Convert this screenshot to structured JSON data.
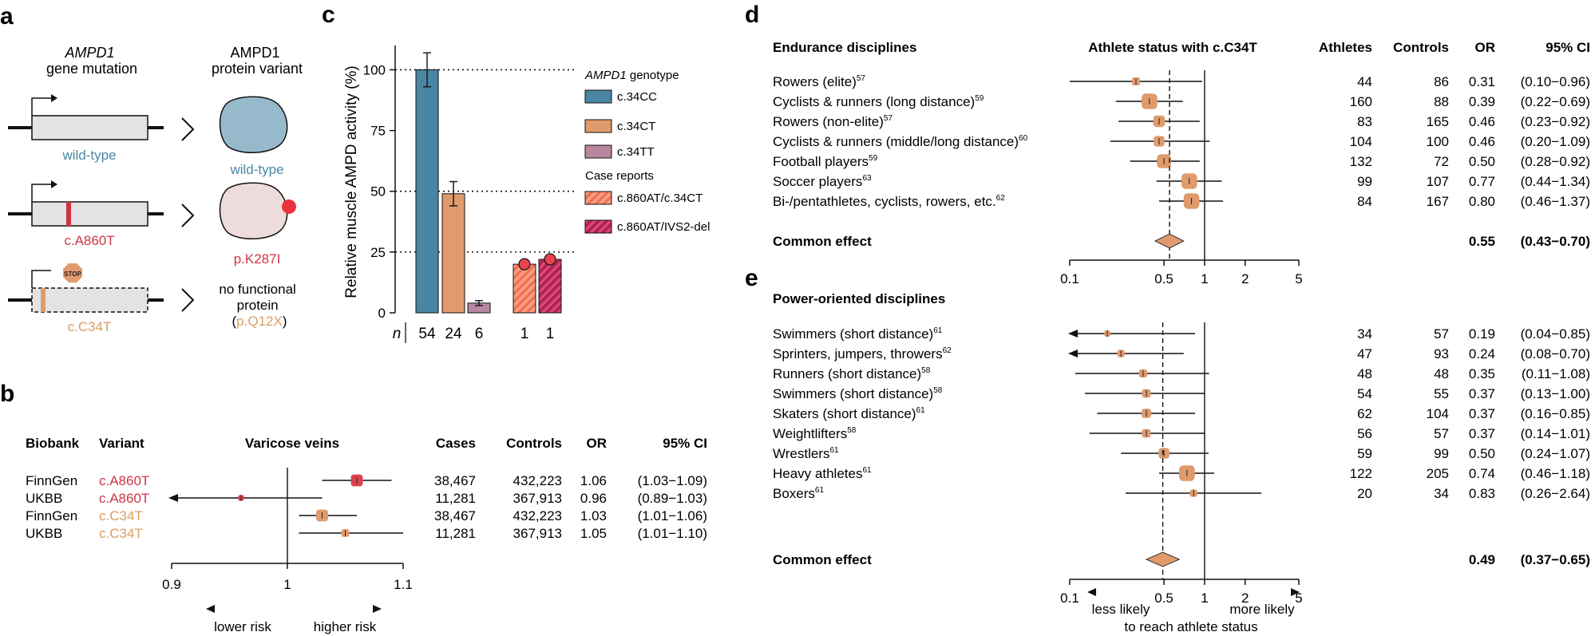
{
  "colors": {
    "blue": "#4a86a3",
    "blue_fill": "#97b9cc",
    "orange": "#e09a6c",
    "orange_text": "#d79e62",
    "mauve": "#b986a0",
    "red": "#cf3444",
    "pink_fill": "#eedcdd",
    "stripe_orange": "#f3745f",
    "stripe_pink": "#d6336f",
    "grey_fill": "#e3e3e3"
  },
  "panel_a": {
    "letter": "a",
    "col1_title_italic": "AMPD1",
    "col1_title_rest": "gene mutation",
    "col2_title_line1": "AMPD1",
    "col2_title_line2": "protein variant",
    "rows": [
      {
        "gene_label": "wild-type",
        "protein_label": "wild-type"
      },
      {
        "gene_label": "c.A860T",
        "protein_label": "p.K287I"
      },
      {
        "gene_label": "c.C34T",
        "protein_label_line1": "no functional",
        "protein_label_line2": "protein",
        "protein_label_paren_open": "(",
        "protein_label_paren_inner": "p.Q12X",
        "protein_label_paren_close": ")"
      }
    ],
    "stop_sign_text": "STOP"
  },
  "panel_b": {
    "letter": "b",
    "headers": {
      "biobank": "Biobank",
      "variant": "Variant",
      "plot": "Varicose veins",
      "cases": "Cases",
      "controls": "Controls",
      "or": "OR",
      "ci": "95% CI"
    },
    "rows": [
      {
        "biobank": "FinnGen",
        "variant": "c.A860T",
        "cases": "38,467",
        "controls": "432,223",
        "or": "1.06",
        "ci": "(1.03−1.09)"
      },
      {
        "biobank": "UKBB",
        "variant": "c.A860T",
        "cases": "11,281",
        "controls": "367,913",
        "or": "0.96",
        "ci": "(0.89−1.03)"
      },
      {
        "biobank": "FinnGen",
        "variant": "c.C34T",
        "cases": "38,467",
        "controls": "432,223",
        "or": "1.03",
        "ci": "(1.01−1.06)"
      },
      {
        "biobank": "UKBB",
        "variant": "c.C34T",
        "cases": "11,281",
        "controls": "367,913",
        "or": "1.05",
        "ci": "(1.01−1.10)"
      }
    ],
    "axis_ticks": [
      "0.9",
      "1",
      "1.1"
    ],
    "lower_label": "lower risk",
    "higher_label": "higher risk"
  },
  "panel_c": {
    "letter": "c",
    "ylabel": "Relative muscle AMPD activity (%)",
    "y_ticks": [
      "0",
      "25",
      "50",
      "75",
      "100"
    ],
    "n_label": "n",
    "n_values": [
      "54",
      "24",
      "6",
      "1",
      "1"
    ],
    "legend_title_italic": "AMPD1",
    "legend_title_rest": " genotype",
    "legend_items": [
      "c.34CC",
      "c.34CT",
      "c.34TT"
    ],
    "case_title": "Case reports",
    "case_items": [
      "c.860AT/c.34CT",
      "c.860AT/IVS2-del"
    ]
  },
  "panel_d": {
    "letter": "d",
    "group_title": "Endurance disciplines",
    "plot_title": "Athlete status with c.C34T",
    "headers": {
      "athletes": "Athletes",
      "controls": "Controls",
      "or": "OR",
      "ci": "95% CI"
    },
    "rows": [
      {
        "label": "Rowers (elite)",
        "ref": "57",
        "athletes": "44",
        "controls": "86",
        "or": "0.31",
        "ci": "(0.10−0.96)"
      },
      {
        "label": "Cyclists & runners (long distance)",
        "ref": "59",
        "athletes": "160",
        "controls": "88",
        "or": "0.39",
        "ci": "(0.22−0.69)"
      },
      {
        "label": "Rowers (non-elite)",
        "ref": "57",
        "athletes": "83",
        "controls": "165",
        "or": "0.46",
        "ci": "(0.23−0.92)"
      },
      {
        "label": "Cyclists & runners (middle/long distance)",
        "ref": "60",
        "athletes": "104",
        "controls": "100",
        "or": "0.46",
        "ci": "(0.20−1.09)"
      },
      {
        "label": "Football players",
        "ref": "59",
        "athletes": "132",
        "controls": "72",
        "or": "0.50",
        "ci": "(0.28−0.92)"
      },
      {
        "label": "Soccer players",
        "ref": "63",
        "athletes": "99",
        "controls": "107",
        "or": "0.77",
        "ci": "(0.44−1.34)"
      },
      {
        "label": "Bi-/pentathletes, cyclists, rowers, etc.",
        "ref": "62",
        "athletes": "84",
        "controls": "167",
        "or": "0.80",
        "ci": "(0.46−1.37)"
      }
    ],
    "common": {
      "label": "Common effect",
      "or": "0.55",
      "ci": "(0.43−0.70)"
    },
    "axis_ticks": [
      "0.1",
      "0.5",
      "1",
      "2",
      "5"
    ]
  },
  "panel_e": {
    "letter": "e",
    "group_title": "Power-oriented disciplines",
    "rows": [
      {
        "label": "Swimmers (short distance)",
        "ref": "61",
        "athletes": "34",
        "controls": "57",
        "or": "0.19",
        "ci": "(0.04−0.85)"
      },
      {
        "label": "Sprinters, jumpers, throwers",
        "ref": "62",
        "athletes": "47",
        "controls": "93",
        "or": "0.24",
        "ci": "(0.08−0.70)"
      },
      {
        "label": "Runners (short distance)",
        "ref": "58",
        "athletes": "48",
        "controls": "48",
        "or": "0.35",
        "ci": "(0.11−1.08)"
      },
      {
        "label": "Swimmers (short distance)",
        "ref": "58",
        "athletes": "54",
        "controls": "55",
        "or": "0.37",
        "ci": "(0.13−1.00)"
      },
      {
        "label": "Skaters (short distance)",
        "ref": "61",
        "athletes": "62",
        "controls": "104",
        "or": "0.37",
        "ci": "(0.16−0.85)"
      },
      {
        "label": "Weightlifters",
        "ref": "58",
        "athletes": "56",
        "controls": "57",
        "or": "0.37",
        "ci": "(0.14−1.01)"
      },
      {
        "label": "Wrestlers",
        "ref": "61",
        "athletes": "59",
        "controls": "99",
        "or": "0.50",
        "ci": "(0.24−1.07)"
      },
      {
        "label": "Heavy athletes",
        "ref": "61",
        "athletes": "122",
        "controls": "205",
        "or": "0.74",
        "ci": "(0.46−1.18)"
      },
      {
        "label": "Boxers",
        "ref": "61",
        "athletes": "20",
        "controls": "34",
        "or": "0.83",
        "ci": "(0.26−2.64)"
      }
    ],
    "common": {
      "label": "Common effect",
      "or": "0.49",
      "ci": "(0.37−0.65)"
    },
    "axis_ticks": [
      "0.1",
      "0.5",
      "1",
      "2",
      "5"
    ],
    "less_label": "less likely",
    "more_label": "more likely",
    "reach_label": "to reach athlete status"
  },
  "chart_data": [
    {
      "type": "bar",
      "ylabel": "Relative muscle AMPD activity (%)",
      "ylim": [
        0,
        110
      ],
      "categories": [
        "c.34CC",
        "c.34CT",
        "c.34TT",
        "c.860AT/c.34CT",
        "c.860AT/IVS2-del"
      ],
      "values": [
        100,
        49,
        4,
        20,
        22
      ],
      "errors": [
        7,
        5,
        1,
        null,
        null
      ],
      "n": [
        54,
        24,
        6,
        1,
        1
      ],
      "reference_lines": [
        25,
        50,
        100
      ],
      "grid": false,
      "legend": "right"
    },
    {
      "type": "scatter",
      "title": "Varicose veins",
      "scale": "linear",
      "xlim": [
        0.9,
        1.1
      ],
      "rows": [
        {
          "biobank": "FinnGen",
          "variant": "c.A860T",
          "or": 1.06,
          "lo": 1.03,
          "hi": 1.09,
          "weight": 3.0
        },
        {
          "biobank": "UKBB",
          "variant": "c.A860T",
          "or": 0.96,
          "lo": 0.89,
          "hi": 1.03,
          "weight": 0.8
        },
        {
          "biobank": "FinnGen",
          "variant": "c.C34T",
          "or": 1.03,
          "lo": 1.01,
          "hi": 1.06,
          "weight": 3.0
        },
        {
          "biobank": "UKBB",
          "variant": "c.C34T",
          "or": 1.05,
          "lo": 1.01,
          "hi": 1.1,
          "weight": 1.6
        }
      ]
    },
    {
      "type": "scatter",
      "title": "Athlete status with c.C34T",
      "scale": "log",
      "xlim": [
        0.1,
        5
      ],
      "common": {
        "or": 0.55,
        "lo": 0.43,
        "hi": 0.7
      },
      "rows": [
        {
          "or": 0.31,
          "lo": 0.1,
          "hi": 0.96,
          "weight": 1.2
        },
        {
          "or": 0.39,
          "lo": 0.22,
          "hi": 0.69,
          "weight": 3.0
        },
        {
          "or": 0.46,
          "lo": 0.23,
          "hi": 0.92,
          "weight": 2.0
        },
        {
          "or": 0.46,
          "lo": 0.2,
          "hi": 1.09,
          "weight": 1.8
        },
        {
          "or": 0.5,
          "lo": 0.28,
          "hi": 0.92,
          "weight": 2.6
        },
        {
          "or": 0.77,
          "lo": 0.44,
          "hi": 1.34,
          "weight": 3.0
        },
        {
          "or": 0.8,
          "lo": 0.46,
          "hi": 1.37,
          "weight": 3.0
        }
      ]
    },
    {
      "type": "scatter",
      "title": "",
      "scale": "log",
      "xlim": [
        0.1,
        5
      ],
      "common": {
        "or": 0.49,
        "lo": 0.37,
        "hi": 0.65
      },
      "rows": [
        {
          "or": 0.19,
          "lo": 0.04,
          "hi": 0.85,
          "weight": 0.7
        },
        {
          "or": 0.24,
          "lo": 0.08,
          "hi": 0.7,
          "weight": 1.0
        },
        {
          "or": 0.35,
          "lo": 0.11,
          "hi": 1.08,
          "weight": 1.2
        },
        {
          "or": 0.37,
          "lo": 0.13,
          "hi": 1.0,
          "weight": 1.3
        },
        {
          "or": 0.37,
          "lo": 0.16,
          "hi": 0.85,
          "weight": 1.5
        },
        {
          "or": 0.37,
          "lo": 0.14,
          "hi": 1.01,
          "weight": 1.3
        },
        {
          "or": 0.5,
          "lo": 0.24,
          "hi": 1.07,
          "weight": 1.8
        },
        {
          "or": 0.74,
          "lo": 0.46,
          "hi": 1.18,
          "weight": 3.0
        },
        {
          "or": 0.83,
          "lo": 0.26,
          "hi": 2.64,
          "weight": 1.0
        }
      ]
    }
  ]
}
